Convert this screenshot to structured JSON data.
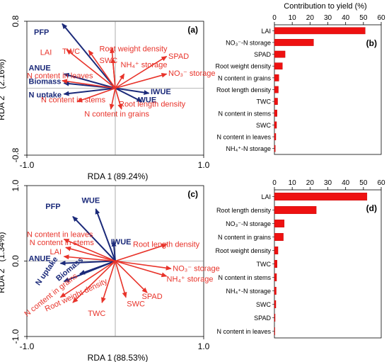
{
  "colors": {
    "response": "#e8332a",
    "explanatory": "#1b2a7a",
    "bar": "#ee1111",
    "axis": "#000000"
  },
  "contribution_title": "Contribution to yield (%)",
  "chart_data": [
    {
      "id": "a",
      "panel_label": "(a)",
      "type": "scatter",
      "variant": "biplot",
      "xlabel": "RDA 1",
      "xpct": "(89.24%)",
      "ylabel": "RDA 2",
      "ypct": "(2.16%)",
      "xlim": [
        -1.0,
        1.0
      ],
      "ylim": [
        -0.8,
        0.8
      ],
      "xticks": [
        {
          "v": -1.0,
          "t": "-1.0"
        },
        {
          "v": 1.0,
          "t": "1.0"
        }
      ],
      "yticks": [
        {
          "v": 0.8,
          "t": "0.8"
        },
        {
          "v": -0.8,
          "t": "-0.8"
        }
      ],
      "series": [
        {
          "name": "",
          "group": "explanatory",
          "vectors": [
            {
              "label": "PFP",
              "x": -0.6,
              "y": 0.77,
              "lx": -0.92,
              "ly": 0.64
            },
            {
              "label": "ANUE",
              "x": -0.58,
              "y": 0.17,
              "lx": -0.98,
              "ly": 0.21
            },
            {
              "label": "Biomass",
              "x": -0.58,
              "y": 0.06,
              "lx": -0.98,
              "ly": 0.05
            },
            {
              "label": "N uptake",
              "x": -0.58,
              "y": -0.07,
              "lx": -0.98,
              "ly": -0.11
            },
            {
              "label": "IWUE",
              "x": 0.38,
              "y": -0.06,
              "lx": 0.4,
              "ly": -0.07
            },
            {
              "label": "WUE",
              "x": 0.3,
              "y": -0.16,
              "lx": 0.26,
              "ly": -0.17
            }
          ]
        },
        {
          "name": "",
          "group": "response",
          "vectors": [
            {
              "label": "LAI",
              "x": -0.55,
              "y": 0.46,
              "lx": -0.85,
              "ly": 0.4
            },
            {
              "label": "TWC",
              "x": -0.3,
              "y": 0.45,
              "lx": -0.6,
              "ly": 0.41
            },
            {
              "label": "Root weight density",
              "x": -0.04,
              "y": 0.48,
              "lx": -0.18,
              "ly": 0.44
            },
            {
              "label": "SWC",
              "x": -0.03,
              "y": 0.36,
              "lx": -0.18,
              "ly": 0.3
            },
            {
              "label": "SPAD",
              "x": 0.58,
              "y": 0.38,
              "lx": 0.6,
              "ly": 0.35
            },
            {
              "label": "NO₃⁻ storage",
              "x": 0.58,
              "y": 0.17,
              "lx": 0.6,
              "ly": 0.15
            },
            {
              "label": "NH₄⁺ storage",
              "x": 0.1,
              "y": 0.17,
              "lx": 0.06,
              "ly": 0.25
            },
            {
              "label": "N content in leaves",
              "x": -0.6,
              "y": 0.09,
              "lx": -1.0,
              "ly": 0.12
            },
            {
              "label": "N content in stems",
              "x": -0.43,
              "y": -0.16,
              "lx": -0.84,
              "ly": -0.17
            },
            {
              "label": "Root length density",
              "x": 0.07,
              "y": -0.25,
              "lx": 0.04,
              "ly": -0.22
            },
            {
              "label": "N content in grains",
              "x": -0.05,
              "y": -0.25,
              "lx": -0.35,
              "ly": -0.34
            }
          ]
        }
      ]
    },
    {
      "id": "b",
      "panel_label": "(b)",
      "type": "bar",
      "orientation": "horizontal",
      "xlim": [
        0,
        60
      ],
      "xticks": [
        0,
        10,
        20,
        30,
        40,
        50,
        60
      ],
      "categories": [
        "LAI",
        "NO₃⁻-N storage",
        "SPAD",
        "Root weight density",
        "N content in grains",
        "Root length density",
        "TWC",
        "N content in stems",
        "SWC",
        "N content in leaves",
        "NH₄⁺-N storage"
      ],
      "values": [
        51,
        22,
        6,
        4.5,
        2.5,
        2.2,
        1.8,
        1.5,
        1.2,
        0.8,
        0.5
      ]
    },
    {
      "id": "c",
      "panel_label": "(c)",
      "type": "scatter",
      "variant": "biplot",
      "xlabel": "RDA 1",
      "xpct": "(88.53%)",
      "ylabel": "RDA 2",
      "ypct": "(1.34%)",
      "xlim": [
        -1.0,
        1.0
      ],
      "ylim": [
        -1.0,
        1.0
      ],
      "xticks": [
        {
          "v": -1.0,
          "t": "-1.0"
        },
        {
          "v": 1.0,
          "t": "1.0"
        }
      ],
      "yticks": [
        {
          "v": 1.0,
          "t": "1.0"
        },
        {
          "v": 0.0,
          "t": "0.0"
        },
        {
          "v": -1.0,
          "t": "-1.0"
        }
      ],
      "series": [
        {
          "name": "",
          "group": "explanatory",
          "vectors": [
            {
              "label": "PFP",
              "x": -0.48,
              "y": 0.59,
              "lx": -0.79,
              "ly": 0.69
            },
            {
              "label": "WUE",
              "x": -0.22,
              "y": 0.69,
              "lx": -0.38,
              "ly": 0.77
            },
            {
              "label": "IWUE",
              "x": -0.02,
              "y": 0.26,
              "lx": -0.05,
              "ly": 0.22
            },
            {
              "label": "ANUE",
              "x": -0.62,
              "y": -0.03,
              "lx": -0.98,
              "ly": 0.0
            },
            {
              "label": "N uptake",
              "x": -0.58,
              "y": -0.27,
              "lx": -0.86,
              "ly": -0.33,
              "rot": -55
            },
            {
              "label": "Biomass",
              "x": -0.4,
              "y": -0.17,
              "lx": -0.64,
              "ly": -0.27,
              "rot": -40
            }
          ]
        },
        {
          "name": "",
          "group": "response",
          "vectors": [
            {
              "label": "N content in leaves",
              "x": -0.58,
              "y": 0.29,
              "lx": -1.0,
              "ly": 0.32
            },
            {
              "label": "N content in stems",
              "x": -0.56,
              "y": 0.18,
              "lx": -0.97,
              "ly": 0.21
            },
            {
              "label": "LAI",
              "x": -0.58,
              "y": 0.06,
              "lx": -0.74,
              "ly": 0.09
            },
            {
              "label": "Root length density",
              "x": 0.58,
              "y": 0.22,
              "lx": 0.2,
              "ly": 0.19
            },
            {
              "label": "NO₃⁻ storage",
              "x": 0.63,
              "y": -0.1,
              "lx": 0.65,
              "ly": -0.13
            },
            {
              "label": "NH₄⁺ storage",
              "x": 0.58,
              "y": -0.2,
              "lx": 0.58,
              "ly": -0.27
            },
            {
              "label": "SPAD",
              "x": 0.36,
              "y": -0.42,
              "lx": 0.3,
              "ly": -0.5
            },
            {
              "label": "SWC",
              "x": 0.12,
              "y": -0.48,
              "lx": 0.13,
              "ly": -0.6
            },
            {
              "label": "TWC",
              "x": -0.15,
              "y": -0.55,
              "lx": -0.31,
              "ly": -0.73
            },
            {
              "label": "Root weight density",
              "x": -0.48,
              "y": -0.55,
              "lx": -0.78,
              "ly": -0.67,
              "rot": -25
            },
            {
              "label": "N content in grains",
              "x": -0.62,
              "y": -0.48,
              "lx": -1.0,
              "ly": -0.74,
              "rot": -38
            }
          ]
        }
      ]
    },
    {
      "id": "d",
      "panel_label": "(d)",
      "type": "bar",
      "orientation": "horizontal",
      "xlim": [
        0,
        60
      ],
      "xticks": [
        0,
        10,
        20,
        30,
        40,
        50,
        60
      ],
      "categories": [
        "LAI",
        "Root length density",
        "NO₃⁻-N storage",
        "N content in grains",
        "Root weight density",
        "TWC",
        "N content in stems",
        "NH₄⁺-N storage",
        "SWC",
        "SPAD",
        "N content in leaves"
      ],
      "values": [
        52,
        23.5,
        5.5,
        5,
        2,
        1.5,
        1.2,
        1,
        0.8,
        0.4,
        0.1
      ]
    }
  ]
}
